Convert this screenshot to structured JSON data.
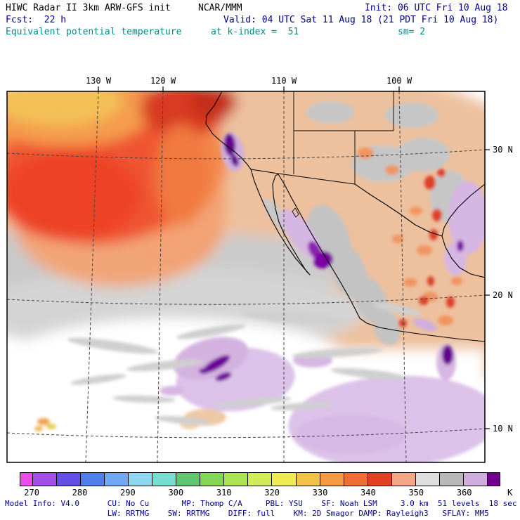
{
  "header": {
    "line1_left": "HIWC Radar II 3km ARW-GFS init",
    "line1_mid": "NCAR/MMM",
    "line1_right": "Init: 06 UTC Fri 10 Aug 18",
    "line2_left": "Fcst:  22 h",
    "line2_mid": "Valid: 04 UTC Sat 11 Aug 18 (21 PDT Fri 10 Aug 18)",
    "line3_left": "Equivalent potential temperature",
    "line3_mid": "at k-index =  51",
    "line3_right": "sm= 2"
  },
  "map": {
    "lon_labels": [
      "130 W",
      "120 W",
      "110 W",
      "100 W"
    ],
    "lat_labels": [
      "30 N",
      "20 N",
      "10 N"
    ]
  },
  "colorbar": {
    "unit_label": "K",
    "tick_labels": [
      "270",
      "280",
      "290",
      "300",
      "310",
      "320",
      "330",
      "340",
      "350",
      "360"
    ],
    "cells": [
      {
        "color": "#e84fe8",
        "span": 1
      },
      {
        "color": "#a44fe4",
        "span": 2
      },
      {
        "color": "#644fe4",
        "span": 2
      },
      {
        "color": "#4f80ea",
        "span": 2
      },
      {
        "color": "#70a8f2",
        "span": 2
      },
      {
        "color": "#90d8f0",
        "span": 2
      },
      {
        "color": "#78ddd0",
        "span": 2
      },
      {
        "color": "#60c470",
        "span": 2
      },
      {
        "color": "#84d658",
        "span": 2
      },
      {
        "color": "#aae258",
        "span": 2
      },
      {
        "color": "#d0ec58",
        "span": 2
      },
      {
        "color": "#eeea50",
        "span": 2
      },
      {
        "color": "#f0c348",
        "span": 2
      },
      {
        "color": "#f29a46",
        "span": 2
      },
      {
        "color": "#ef6d38",
        "span": 2
      },
      {
        "color": "#e23f24",
        "span": 2
      },
      {
        "color": "#f2a787",
        "span": 2
      },
      {
        "color": "#dedede",
        "span": 2
      },
      {
        "color": "#b8b8b8",
        "span": 2
      },
      {
        "color": "#cfaede",
        "span": 2
      },
      {
        "color": "#70008f",
        "span": 1
      }
    ]
  },
  "footer": {
    "line1": "Model Info: V4.0      CU: No Cu       MP: Thomp C/A     PBL: YSU    SF: Noah LSM     3.0 km  51 levels  18 sec",
    "line2": "                      LW: RRTMG    SW: RRTMG    DIFF: full    KM: 2D Smagor DAMP: Rayleigh3   SFLAY: MM5"
  },
  "palette": {
    "text_black": "#000000",
    "text_navy": "#00008b",
    "text_teal": "#008b8b",
    "field_high_red": "#e23f24",
    "field_orange": "#f4884b",
    "field_tan": "#edc19e",
    "field_gray": "#c9c9c9",
    "field_lavender": "#dcc2e8",
    "field_dark_purple": "#70008f"
  }
}
